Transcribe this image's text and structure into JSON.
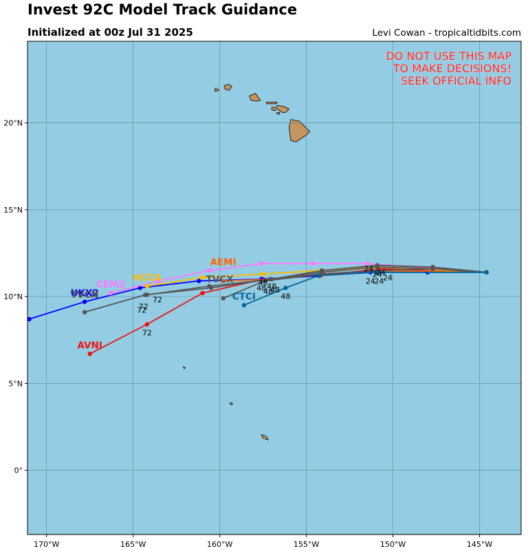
{
  "header": {
    "title": "Invest 92C Model Track Guidance",
    "subtitle": "Initialized at 00z Jul 31 2025",
    "credit": "Levi Cowan - tropicaltidbits.com"
  },
  "warning": [
    "DO NOT USE THIS MAP",
    "TO MAKE DECISIONS!",
    "SEEK OFFICIAL INFO"
  ],
  "colors": {
    "ocean": "#94cde3",
    "land": "#c4955f",
    "grid": "#5c8796",
    "warning": "#ff1a1a"
  },
  "map_data": {
    "type": "storm-track-map",
    "extent": {
      "lon_min": -171.1,
      "lon_max": -142.6,
      "lat_min": -3.7,
      "lat_max": 24.7
    },
    "lon_ticks": [
      -170,
      -165,
      -160,
      -155,
      -150,
      -145
    ],
    "lat_ticks": [
      0,
      5,
      10,
      15,
      20
    ],
    "lon_tick_labels": [
      "170°W",
      "165°W",
      "160°W",
      "155°W",
      "150°W",
      "145°W"
    ],
    "lat_tick_labels": [
      "0°",
      "5°N",
      "10°N",
      "15°N",
      "20°N"
    ],
    "tracks": [
      {
        "name": "AVNI",
        "color": "#ee1111",
        "points": [
          [
            -144.6,
            11.4
          ],
          [
            -150.8,
            11.6
          ],
          [
            -154.2,
            11.2
          ],
          [
            -157.5,
            11.0
          ],
          [
            -161.0,
            10.2
          ],
          [
            -164.2,
            8.4
          ],
          [
            -167.5,
            6.7
          ]
        ],
        "hour_labels": [
          {
            "text": "72",
            "lon": -164.2,
            "lat": 8.4
          }
        ],
        "label": {
          "text": "AVNI",
          "lon": -167.5,
          "lat": 6.7
        }
      },
      {
        "name": "UKX2",
        "color": "#0000ff",
        "points": [
          [
            -144.6,
            11.4
          ],
          [
            -148.0,
            11.4
          ],
          [
            -151.3,
            11.4
          ],
          [
            -154.3,
            11.2
          ],
          [
            -157.6,
            11.0
          ],
          [
            -161.2,
            10.9
          ],
          [
            -164.6,
            10.5
          ],
          [
            -167.8,
            9.7
          ],
          [
            -171.0,
            8.7
          ]
        ],
        "hour_labels": [],
        "label": {
          "text": "UKX2",
          "lon": -167.8,
          "lat": 9.7
        }
      },
      {
        "name": "CEM2",
        "color": "#ff77ff",
        "points": [
          [
            -144.6,
            11.4
          ],
          [
            -151.5,
            11.9
          ],
          [
            -154.6,
            11.9
          ],
          [
            -157.6,
            11.9
          ],
          [
            -160.6,
            11.5
          ],
          [
            -163.5,
            10.9
          ],
          [
            -166.3,
            10.2
          ]
        ],
        "hour_labels": [],
        "label": {
          "text": "CEM2",
          "lon": -166.3,
          "lat": 10.2
        }
      },
      {
        "name": "HCCA",
        "color": "#ffbb00",
        "points": [
          [
            -144.6,
            11.4
          ],
          [
            -151.0,
            11.7
          ],
          [
            -154.2,
            11.5
          ],
          [
            -157.5,
            11.3
          ],
          [
            -161.0,
            11.1
          ],
          [
            -164.2,
            10.6
          ]
        ],
        "hour_labels": [
          {
            "text": "48",
            "lon": -157.5,
            "lat": 11.3
          },
          {
            "text": "72",
            "lon": -163.6,
            "lat": 10.3
          }
        ],
        "label": {
          "text": "HCCA",
          "lon": -164.2,
          "lat": 10.6
        }
      },
      {
        "name": "AEMI",
        "color": "#ff6600",
        "points": [
          [
            -144.6,
            11.4
          ],
          [
            -151.0,
            11.5
          ],
          [
            -154.0,
            11.3
          ],
          [
            -157.0,
            11.0
          ],
          [
            -159.8,
            10.9
          ]
        ],
        "hour_labels": [],
        "label": {
          "text": "AEMI",
          "lon": -159.8,
          "lat": 11.5
        }
      },
      {
        "name": "TVCX",
        "color": "#555555",
        "points": [
          [
            -144.6,
            11.4
          ],
          [
            -147.7,
            11.7
          ],
          [
            -150.9,
            11.8
          ],
          [
            -154.1,
            11.5
          ],
          [
            -157.0,
            11.0
          ],
          [
            -160.6,
            10.6
          ],
          [
            -164.2,
            10.1
          ]
        ],
        "hour_labels": [
          {
            "text": "72",
            "lon": -164.4,
            "lat": 9.9
          }
        ],
        "label": {
          "text": "TVCX",
          "lon": -160.0,
          "lat": 10.5
        }
      },
      {
        "name": "TVCN",
        "color": "#555555",
        "points": [
          [
            -144.6,
            11.4
          ],
          [
            -147.7,
            11.6
          ],
          [
            -150.9,
            11.7
          ],
          [
            -154.1,
            11.4
          ],
          [
            -157.1,
            11.0
          ],
          [
            -160.5,
            10.5
          ],
          [
            -164.3,
            10.1
          ],
          [
            -167.8,
            9.1
          ]
        ],
        "hour_labels": [
          {
            "text": "72",
            "lon": -164.5,
            "lat": 9.7
          }
        ],
        "label": {
          "text": "TVCN",
          "lon": -167.8,
          "lat": 9.6
        }
      },
      {
        "name": "TVCE",
        "color": "#555555",
        "points": [
          [
            -144.6,
            11.4
          ],
          [
            -147.7,
            11.6
          ],
          [
            -150.9,
            11.5
          ],
          [
            -154.1,
            11.3
          ],
          [
            -157.4,
            10.9
          ],
          [
            -159.8,
            9.9
          ]
        ],
        "hour_labels": [],
        "label": {
          "text": "",
          "lon": -159.8,
          "lat": 9.9
        }
      },
      {
        "name": "CTCI",
        "color": "#006699",
        "points": [
          [
            -144.6,
            11.4
          ],
          [
            -151.0,
            11.4
          ],
          [
            -154.3,
            11.2
          ],
          [
            -156.2,
            10.5
          ],
          [
            -158.6,
            9.5
          ]
        ],
        "hour_labels": [
          {
            "text": "48",
            "lon": -156.2,
            "lat": 10.5
          }
        ],
        "label": {
          "text": "CTCI",
          "lon": -158.6,
          "lat": 9.5
        }
      }
    ],
    "misc_hour_labels": [
      {
        "text": "24",
        "lon": -151.4,
        "lat": 11.6
      },
      {
        "text": "24",
        "lon": -150.9,
        "lat": 11.3
      },
      {
        "text": "24",
        "lon": -150.3,
        "lat": 11.1
      },
      {
        "text": "24",
        "lon": -150.8,
        "lat": 10.9
      },
      {
        "text": "24",
        "lon": -151.3,
        "lat": 10.9
      },
      {
        "text": "24",
        "lon": -150.7,
        "lat": 11.4
      },
      {
        "text": "48",
        "lon": -157.0,
        "lat": 10.6
      },
      {
        "text": "48",
        "lon": -157.2,
        "lat": 10.3
      },
      {
        "text": "48",
        "lon": -157.6,
        "lat": 10.5
      },
      {
        "text": "48",
        "lon": -156.8,
        "lat": 10.4
      }
    ],
    "land": [
      {
        "name": "Hawaii (Big Island)",
        "points": [
          [
            -155.9,
            20.2
          ],
          [
            -155.4,
            20.1
          ],
          [
            -154.8,
            19.5
          ],
          [
            -155.0,
            19.3
          ],
          [
            -155.6,
            18.9
          ],
          [
            -155.9,
            19.0
          ],
          [
            -156.0,
            19.7
          ]
        ]
      },
      {
        "name": "Maui",
        "points": [
          [
            -156.7,
            21.0
          ],
          [
            -156.3,
            20.95
          ],
          [
            -156.0,
            20.8
          ],
          [
            -156.2,
            20.6
          ],
          [
            -156.4,
            20.6
          ],
          [
            -156.7,
            20.8
          ]
        ]
      },
      {
        "name": "Molokai",
        "points": [
          [
            -157.3,
            21.2
          ],
          [
            -156.7,
            21.2
          ],
          [
            -156.7,
            21.1
          ],
          [
            -157.3,
            21.1
          ]
        ]
      },
      {
        "name": "Lanai",
        "points": [
          [
            -157.0,
            20.9
          ],
          [
            -156.8,
            20.9
          ],
          [
            -156.8,
            20.7
          ],
          [
            -157.0,
            20.75
          ]
        ]
      },
      {
        "name": "Kahoolawe",
        "points": [
          [
            -156.7,
            20.6
          ],
          [
            -156.55,
            20.6
          ],
          [
            -156.55,
            20.5
          ],
          [
            -156.7,
            20.52
          ]
        ]
      },
      {
        "name": "Oahu",
        "points": [
          [
            -158.3,
            21.55
          ],
          [
            -157.95,
            21.7
          ],
          [
            -157.65,
            21.3
          ],
          [
            -157.9,
            21.25
          ],
          [
            -158.2,
            21.3
          ]
        ]
      },
      {
        "name": "Kauai",
        "points": [
          [
            -159.75,
            22.15
          ],
          [
            -159.5,
            22.22
          ],
          [
            -159.3,
            22.1
          ],
          [
            -159.45,
            21.88
          ],
          [
            -159.7,
            21.95
          ]
        ]
      },
      {
        "name": "Niihau",
        "points": [
          [
            -160.25,
            22.0
          ],
          [
            -160.05,
            21.9
          ],
          [
            -160.2,
            21.8
          ],
          [
            -160.3,
            21.85
          ]
        ]
      },
      {
        "name": "Kingman/Palmyra",
        "points": [
          [
            -162.1,
            5.95
          ],
          [
            -162.0,
            5.9
          ],
          [
            -162.05,
            5.85
          ]
        ]
      },
      {
        "name": "Kiritimati",
        "points": [
          [
            -157.6,
            2.05
          ],
          [
            -157.3,
            1.95
          ],
          [
            -157.2,
            1.75
          ],
          [
            -157.5,
            1.85
          ]
        ]
      },
      {
        "name": "Tabuaeran",
        "points": [
          [
            -159.4,
            3.9
          ],
          [
            -159.25,
            3.85
          ],
          [
            -159.3,
            3.78
          ],
          [
            -159.4,
            3.8
          ]
        ]
      }
    ]
  }
}
